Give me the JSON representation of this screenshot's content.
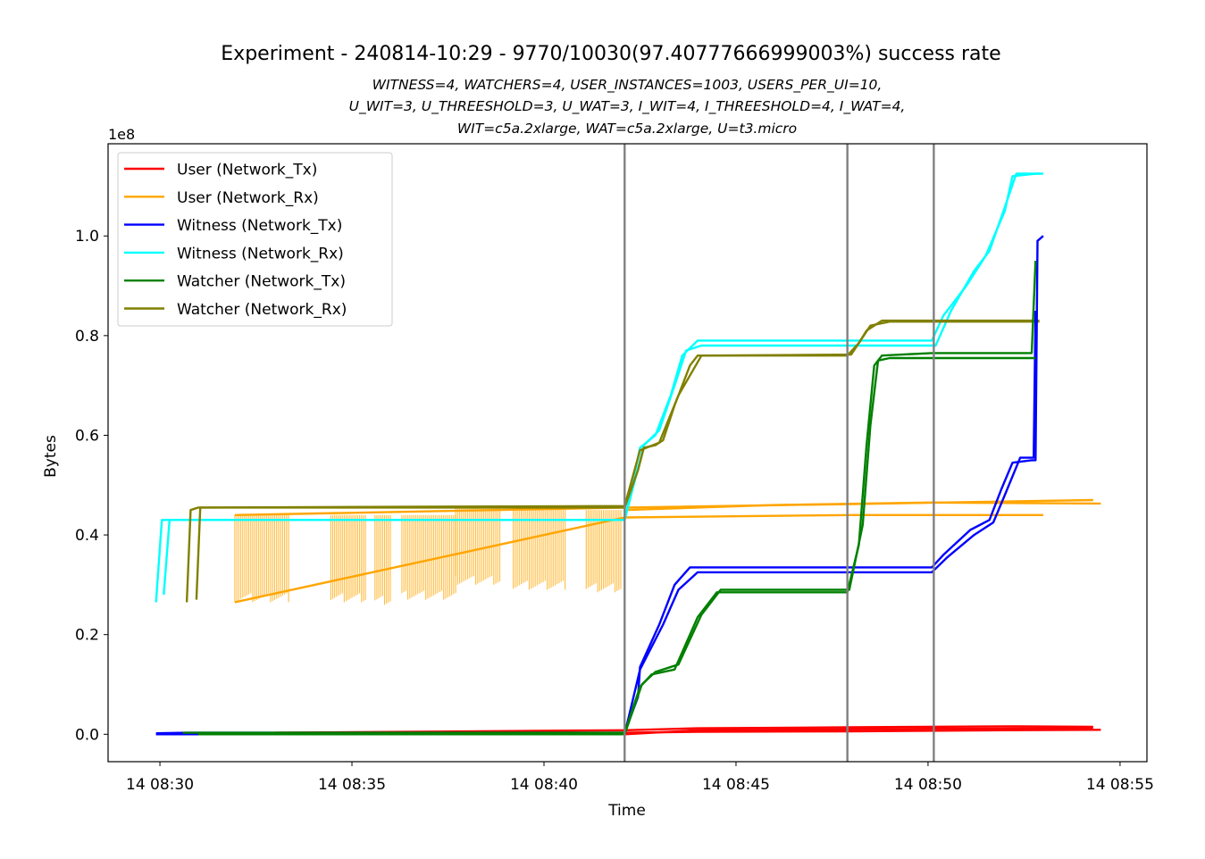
{
  "chart_data": {
    "type": "line",
    "title": "Experiment - 240814-10:29 - 9770/10030(97.40777666999003%) success rate",
    "subtitle_lines": [
      "WITNESS=4, WATCHERS=4, USER_INSTANCES=1003, USERS_PER_UI=10,",
      "U_WIT=3, U_THREESHOLD=3, U_WAT=3, I_WIT=4, I_THREESHOLD=4, I_WAT=4,",
      "WIT=c5a.2xlarge, WAT=c5a.2xlarge, U=t3.micro"
    ],
    "xlabel": "Time",
    "ylabel": "Bytes",
    "y_offset_label": "1e8",
    "xlim": [
      -1.35,
      25.7
    ],
    "ylim": [
      -0.055,
      1.185
    ],
    "x_ticks": [
      {
        "v": 0,
        "label": "14 08:30"
      },
      {
        "v": 5,
        "label": "14 08:35"
      },
      {
        "v": 10,
        "label": "14 08:40"
      },
      {
        "v": 15,
        "label": "14 08:45"
      },
      {
        "v": 20,
        "label": "14 08:50"
      },
      {
        "v": 25,
        "label": "14 08:55"
      }
    ],
    "y_ticks": [
      {
        "v": 0.0,
        "label": "0.0"
      },
      {
        "v": 0.2,
        "label": "0.2"
      },
      {
        "v": 0.4,
        "label": "0.4"
      },
      {
        "v": 0.6,
        "label": "0.6"
      },
      {
        "v": 0.8,
        "label": "0.8"
      },
      {
        "v": 1.0,
        "label": "1.0"
      }
    ],
    "vlines": [
      12.1,
      17.9,
      20.15
    ],
    "legend_position": "top-left",
    "grid": false,
    "series": [
      {
        "name": "User (Network_Tx)",
        "color": "#ff0000",
        "lines": [
          [
            [
              -0.1,
              0.0
            ],
            [
              12.1,
              0.003
            ],
            [
              14.0,
              0.005
            ],
            [
              18.0,
              0.006
            ],
            [
              22.0,
              0.008
            ],
            [
              24.5,
              0.009
            ]
          ],
          [
            [
              3.0,
              0.003
            ],
            [
              12.1,
              0.008
            ],
            [
              14.0,
              0.012
            ],
            [
              18.0,
              0.014
            ],
            [
              22.0,
              0.016
            ],
            [
              24.3,
              0.015
            ]
          ],
          [
            [
              12.1,
              0.0
            ],
            [
              14.0,
              0.008
            ],
            [
              20.0,
              0.011
            ],
            [
              24.3,
              0.012
            ]
          ]
        ]
      },
      {
        "name": "User (Network_Rx)",
        "color": "#ffa500",
        "lines": [
          [
            [
              1.95,
              0.265
            ],
            [
              12.1,
              0.435
            ],
            [
              18.0,
              0.44
            ],
            [
              23.0,
              0.44
            ]
          ],
          [
            [
              12.1,
              0.45
            ],
            [
              16.0,
              0.46
            ],
            [
              20.0,
              0.465
            ],
            [
              24.5,
              0.463
            ]
          ],
          [
            [
              1.95,
              0.44
            ],
            [
              12.1,
              0.455
            ],
            [
              18.0,
              0.462
            ],
            [
              24.3,
              0.47
            ]
          ]
        ]
      },
      {
        "name": "Witness (Network_Tx)",
        "color": "#0000ff",
        "lines": [
          [
            [
              -0.1,
              0.002
            ],
            [
              0.7,
              0.003
            ],
            [
              12.1,
              0.003
            ],
            [
              12.45,
              0.075
            ],
            [
              12.5,
              0.135
            ],
            [
              13.0,
              0.22
            ],
            [
              13.4,
              0.3
            ],
            [
              13.8,
              0.335
            ],
            [
              20.1,
              0.335
            ],
            [
              20.4,
              0.36
            ],
            [
              21.1,
              0.41
            ],
            [
              21.6,
              0.43
            ],
            [
              21.9,
              0.49
            ],
            [
              22.2,
              0.545
            ],
            [
              22.7,
              0.55
            ],
            [
              22.8,
              0.55
            ],
            [
              22.85,
              0.99
            ],
            [
              23.0,
              1.0
            ]
          ],
          [
            [
              -0.1,
              0.0
            ],
            [
              12.1,
              0.0
            ],
            [
              12.5,
              0.13
            ],
            [
              13.1,
              0.22
            ],
            [
              13.5,
              0.29
            ],
            [
              14.0,
              0.325
            ],
            [
              20.1,
              0.325
            ],
            [
              20.5,
              0.355
            ],
            [
              21.2,
              0.4
            ],
            [
              21.7,
              0.425
            ],
            [
              22.0,
              0.48
            ],
            [
              22.4,
              0.555
            ],
            [
              22.75,
              0.555
            ],
            [
              22.8,
              0.85
            ]
          ]
        ]
      },
      {
        "name": "Witness (Network_Rx)",
        "color": "#00ffff",
        "lines": [
          [
            [
              -0.1,
              0.265
            ],
            [
              0.05,
              0.43
            ],
            [
              0.4,
              0.43
            ],
            [
              12.1,
              0.43
            ],
            [
              12.5,
              0.575
            ],
            [
              12.9,
              0.6
            ],
            [
              13.3,
              0.68
            ],
            [
              13.6,
              0.76
            ],
            [
              14.0,
              0.79
            ],
            [
              20.1,
              0.79
            ],
            [
              20.4,
              0.84
            ],
            [
              21.0,
              0.9
            ],
            [
              21.5,
              0.96
            ],
            [
              22.0,
              1.05
            ],
            [
              22.2,
              1.12
            ],
            [
              22.8,
              1.125
            ],
            [
              23.0,
              1.125
            ]
          ],
          [
            [
              0.1,
              0.28
            ],
            [
              0.25,
              0.43
            ],
            [
              12.1,
              0.43
            ],
            [
              12.6,
              0.58
            ],
            [
              13.0,
              0.61
            ],
            [
              13.4,
              0.7
            ],
            [
              13.7,
              0.77
            ],
            [
              14.1,
              0.78
            ],
            [
              20.2,
              0.78
            ],
            [
              20.6,
              0.85
            ],
            [
              21.2,
              0.93
            ],
            [
              21.6,
              0.97
            ],
            [
              22.1,
              1.08
            ],
            [
              22.3,
              1.125
            ],
            [
              22.9,
              1.125
            ]
          ]
        ]
      },
      {
        "name": "Watcher (Network_Tx)",
        "color": "#008000",
        "lines": [
          [
            [
              0.6,
              0.003
            ],
            [
              12.1,
              0.003
            ],
            [
              12.5,
              0.095
            ],
            [
              12.8,
              0.12
            ],
            [
              13.4,
              0.13
            ],
            [
              14.0,
              0.235
            ],
            [
              14.5,
              0.285
            ],
            [
              17.9,
              0.285
            ],
            [
              18.2,
              0.38
            ],
            [
              18.4,
              0.58
            ],
            [
              18.6,
              0.74
            ],
            [
              18.8,
              0.76
            ],
            [
              20.1,
              0.765
            ],
            [
              22.7,
              0.765
            ],
            [
              22.8,
              0.95
            ]
          ],
          [
            [
              1.0,
              0.0
            ],
            [
              12.1,
              0.0
            ],
            [
              12.55,
              0.1
            ],
            [
              12.9,
              0.125
            ],
            [
              13.5,
              0.14
            ],
            [
              14.1,
              0.24
            ],
            [
              14.6,
              0.29
            ],
            [
              17.95,
              0.29
            ],
            [
              18.3,
              0.42
            ],
            [
              18.5,
              0.62
            ],
            [
              18.7,
              0.75
            ],
            [
              19.0,
              0.755
            ],
            [
              22.8,
              0.755
            ]
          ]
        ]
      },
      {
        "name": "Watcher (Network_Rx)",
        "color": "#808000",
        "lines": [
          [
            [
              0.7,
              0.265
            ],
            [
              0.8,
              0.45
            ],
            [
              1.0,
              0.455
            ],
            [
              12.1,
              0.455
            ],
            [
              12.45,
              0.53
            ],
            [
              12.6,
              0.575
            ],
            [
              12.9,
              0.58
            ],
            [
              13.1,
              0.59
            ],
            [
              13.4,
              0.66
            ],
            [
              13.8,
              0.74
            ],
            [
              14.0,
              0.76
            ],
            [
              17.9,
              0.76
            ],
            [
              18.2,
              0.785
            ],
            [
              18.4,
              0.81
            ],
            [
              18.8,
              0.83
            ],
            [
              22.9,
              0.83
            ]
          ],
          [
            [
              0.95,
              0.27
            ],
            [
              1.05,
              0.455
            ],
            [
              12.1,
              0.458
            ],
            [
              12.5,
              0.57
            ],
            [
              13.0,
              0.585
            ],
            [
              13.5,
              0.68
            ],
            [
              14.1,
              0.76
            ],
            [
              18.0,
              0.762
            ],
            [
              18.5,
              0.82
            ],
            [
              19.0,
              0.828
            ],
            [
              22.9,
              0.828
            ]
          ]
        ]
      }
    ],
    "user_rx_bursts": [
      {
        "start": 1.95,
        "end": 3.35,
        "low": 0.265,
        "high": 0.44
      },
      {
        "start": 4.45,
        "end": 5.35,
        "low": 0.265,
        "high": 0.44
      },
      {
        "start": 5.6,
        "end": 6.0,
        "low": 0.26,
        "high": 0.44
      },
      {
        "start": 6.3,
        "end": 7.7,
        "low": 0.27,
        "high": 0.44
      },
      {
        "start": 7.7,
        "end": 8.85,
        "low": 0.3,
        "high": 0.455
      },
      {
        "start": 9.2,
        "end": 10.55,
        "low": 0.29,
        "high": 0.455
      },
      {
        "start": 11.1,
        "end": 12.0,
        "low": 0.285,
        "high": 0.45
      }
    ]
  }
}
